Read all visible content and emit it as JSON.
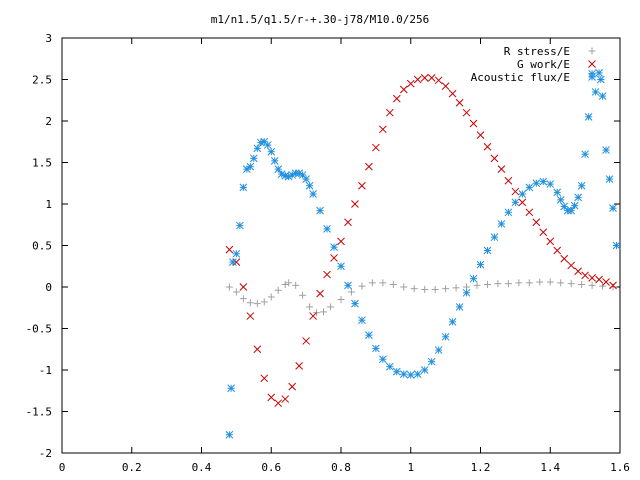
{
  "chart_data": {
    "type": "scatter",
    "title": "m1/n1.5/q1.5/r-+.30-j78/M10.0/256",
    "xlabel": "",
    "ylabel": "",
    "xlim": [
      0,
      1.6
    ],
    "ylim": [
      -2,
      3
    ],
    "x_ticks": [
      {
        "value": 0,
        "label": "0"
      },
      {
        "value": 0.2,
        "label": "0.2"
      },
      {
        "value": 0.4,
        "label": "0.4"
      },
      {
        "value": 0.6,
        "label": "0.6"
      },
      {
        "value": 0.8,
        "label": "0.8"
      },
      {
        "value": 1.0,
        "label": "1"
      },
      {
        "value": 1.2,
        "label": "1.2"
      },
      {
        "value": 1.4,
        "label": "1.4"
      },
      {
        "value": 1.6,
        "label": "1.6"
      }
    ],
    "y_ticks": [
      {
        "value": -2,
        "label": "-2"
      },
      {
        "value": -1.5,
        "label": "-1.5"
      },
      {
        "value": -1,
        "label": "-1"
      },
      {
        "value": -0.5,
        "label": "-0.5"
      },
      {
        "value": 0,
        "label": "0"
      },
      {
        "value": 0.5,
        "label": "0.5"
      },
      {
        "value": 1,
        "label": "1"
      },
      {
        "value": 1.5,
        "label": "1.5"
      },
      {
        "value": 2,
        "label": "2"
      },
      {
        "value": 2.5,
        "label": "2.5"
      },
      {
        "value": 3,
        "label": "3"
      }
    ],
    "grid": false,
    "legend_position": "top-right",
    "series": [
      {
        "name": "R stress/E",
        "marker": "plus",
        "color": "#a0a0a0",
        "points": [
          [
            0.48,
            0.0
          ],
          [
            0.5,
            -0.06
          ],
          [
            0.52,
            -0.14
          ],
          [
            0.54,
            -0.19
          ],
          [
            0.56,
            -0.2
          ],
          [
            0.58,
            -0.18
          ],
          [
            0.6,
            -0.12
          ],
          [
            0.62,
            -0.04
          ],
          [
            0.64,
            0.03
          ],
          [
            0.65,
            0.05
          ],
          [
            0.67,
            0.02
          ],
          [
            0.69,
            -0.1
          ],
          [
            0.71,
            -0.24
          ],
          [
            0.73,
            -0.31
          ],
          [
            0.75,
            -0.3
          ],
          [
            0.77,
            -0.24
          ],
          [
            0.8,
            -0.15
          ],
          [
            0.83,
            -0.06
          ],
          [
            0.86,
            0.01
          ],
          [
            0.89,
            0.05
          ],
          [
            0.92,
            0.05
          ],
          [
            0.95,
            0.03
          ],
          [
            0.98,
            0.0
          ],
          [
            1.01,
            -0.02
          ],
          [
            1.04,
            -0.03
          ],
          [
            1.07,
            -0.03
          ],
          [
            1.1,
            -0.02
          ],
          [
            1.13,
            -0.01
          ],
          [
            1.16,
            0.0
          ],
          [
            1.19,
            0.02
          ],
          [
            1.22,
            0.03
          ],
          [
            1.25,
            0.04
          ],
          [
            1.28,
            0.04
          ],
          [
            1.31,
            0.05
          ],
          [
            1.34,
            0.05
          ],
          [
            1.37,
            0.06
          ],
          [
            1.4,
            0.06
          ],
          [
            1.43,
            0.05
          ],
          [
            1.46,
            0.04
          ],
          [
            1.49,
            0.03
          ],
          [
            1.52,
            0.02
          ],
          [
            1.55,
            0.01
          ],
          [
            1.58,
            0.0
          ]
        ]
      },
      {
        "name": "G work/E",
        "marker": "cross",
        "color": "#cc0000",
        "points": [
          [
            0.48,
            0.45
          ],
          [
            0.5,
            0.3
          ],
          [
            0.52,
            0.0
          ],
          [
            0.54,
            -0.35
          ],
          [
            0.56,
            -0.75
          ],
          [
            0.58,
            -1.1
          ],
          [
            0.6,
            -1.33
          ],
          [
            0.62,
            -1.4
          ],
          [
            0.64,
            -1.35
          ],
          [
            0.66,
            -1.2
          ],
          [
            0.68,
            -0.95
          ],
          [
            0.7,
            -0.65
          ],
          [
            0.72,
            -0.35
          ],
          [
            0.74,
            -0.08
          ],
          [
            0.76,
            0.15
          ],
          [
            0.78,
            0.35
          ],
          [
            0.8,
            0.55
          ],
          [
            0.82,
            0.78
          ],
          [
            0.84,
            1.0
          ],
          [
            0.86,
            1.22
          ],
          [
            0.88,
            1.45
          ],
          [
            0.9,
            1.68
          ],
          [
            0.92,
            1.9
          ],
          [
            0.94,
            2.1
          ],
          [
            0.96,
            2.27
          ],
          [
            0.98,
            2.38
          ],
          [
            1.0,
            2.45
          ],
          [
            1.02,
            2.5
          ],
          [
            1.04,
            2.52
          ],
          [
            1.06,
            2.52
          ],
          [
            1.08,
            2.49
          ],
          [
            1.1,
            2.42
          ],
          [
            1.12,
            2.33
          ],
          [
            1.14,
            2.22
          ],
          [
            1.16,
            2.1
          ],
          [
            1.18,
            1.97
          ],
          [
            1.2,
            1.83
          ],
          [
            1.22,
            1.69
          ],
          [
            1.24,
            1.55
          ],
          [
            1.26,
            1.42
          ],
          [
            1.28,
            1.28
          ],
          [
            1.3,
            1.15
          ],
          [
            1.32,
            1.02
          ],
          [
            1.34,
            0.9
          ],
          [
            1.36,
            0.78
          ],
          [
            1.38,
            0.66
          ],
          [
            1.4,
            0.55
          ],
          [
            1.42,
            0.44
          ],
          [
            1.44,
            0.34
          ],
          [
            1.46,
            0.26
          ],
          [
            1.48,
            0.19
          ],
          [
            1.5,
            0.14
          ],
          [
            1.52,
            0.11
          ],
          [
            1.54,
            0.09
          ],
          [
            1.56,
            0.06
          ],
          [
            1.58,
            0.02
          ]
        ]
      },
      {
        "name": "Acoustic flux/E",
        "marker": "star",
        "color": "#1f8fe0",
        "points": [
          [
            0.48,
            -1.78
          ],
          [
            0.485,
            -1.22
          ],
          [
            0.49,
            0.3
          ],
          [
            0.5,
            0.4
          ],
          [
            0.51,
            0.74
          ],
          [
            0.52,
            1.2
          ],
          [
            0.53,
            1.42
          ],
          [
            0.54,
            1.45
          ],
          [
            0.55,
            1.55
          ],
          [
            0.56,
            1.67
          ],
          [
            0.57,
            1.74
          ],
          [
            0.58,
            1.75
          ],
          [
            0.59,
            1.71
          ],
          [
            0.6,
            1.63
          ],
          [
            0.61,
            1.52
          ],
          [
            0.62,
            1.42
          ],
          [
            0.63,
            1.36
          ],
          [
            0.64,
            1.34
          ],
          [
            0.65,
            1.33
          ],
          [
            0.66,
            1.35
          ],
          [
            0.67,
            1.37
          ],
          [
            0.68,
            1.37
          ],
          [
            0.69,
            1.35
          ],
          [
            0.7,
            1.3
          ],
          [
            0.71,
            1.22
          ],
          [
            0.72,
            1.12
          ],
          [
            0.74,
            0.92
          ],
          [
            0.76,
            0.7
          ],
          [
            0.78,
            0.48
          ],
          [
            0.8,
            0.25
          ],
          [
            0.82,
            0.02
          ],
          [
            0.84,
            -0.2
          ],
          [
            0.86,
            -0.4
          ],
          [
            0.88,
            -0.58
          ],
          [
            0.9,
            -0.74
          ],
          [
            0.92,
            -0.87
          ],
          [
            0.94,
            -0.96
          ],
          [
            0.96,
            -1.02
          ],
          [
            0.98,
            -1.05
          ],
          [
            1.0,
            -1.06
          ],
          [
            1.02,
            -1.05
          ],
          [
            1.04,
            -1.0
          ],
          [
            1.06,
            -0.9
          ],
          [
            1.08,
            -0.76
          ],
          [
            1.1,
            -0.6
          ],
          [
            1.12,
            -0.42
          ],
          [
            1.14,
            -0.24
          ],
          [
            1.16,
            -0.07
          ],
          [
            1.18,
            0.1
          ],
          [
            1.2,
            0.27
          ],
          [
            1.22,
            0.44
          ],
          [
            1.24,
            0.6
          ],
          [
            1.26,
            0.76
          ],
          [
            1.28,
            0.9
          ],
          [
            1.3,
            1.02
          ],
          [
            1.32,
            1.12
          ],
          [
            1.34,
            1.2
          ],
          [
            1.36,
            1.25
          ],
          [
            1.38,
            1.27
          ],
          [
            1.4,
            1.24
          ],
          [
            1.42,
            1.14
          ],
          [
            1.43,
            1.05
          ],
          [
            1.44,
            0.97
          ],
          [
            1.45,
            0.92
          ],
          [
            1.46,
            0.92
          ],
          [
            1.47,
            0.98
          ],
          [
            1.48,
            1.08
          ],
          [
            1.49,
            1.22
          ],
          [
            1.5,
            1.6
          ],
          [
            1.51,
            2.05
          ],
          [
            1.52,
            2.57
          ],
          [
            1.53,
            2.35
          ],
          [
            1.54,
            2.58
          ],
          [
            1.545,
            2.5
          ],
          [
            1.55,
            2.3
          ],
          [
            1.56,
            1.65
          ],
          [
            1.57,
            1.3
          ],
          [
            1.58,
            0.95
          ],
          [
            1.59,
            0.5
          ]
        ]
      }
    ]
  }
}
